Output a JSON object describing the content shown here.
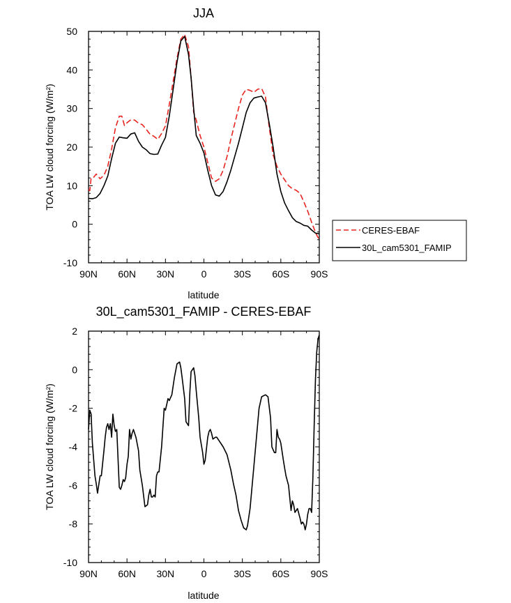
{
  "chart_data": [
    {
      "type": "line",
      "title": "JJA",
      "xlabel": "latitude",
      "ylabel": "TOA LW cloud forcing (W/m²)",
      "xlim": [
        90,
        -90
      ],
      "ylim": [
        -10,
        50
      ],
      "xticks": [
        90,
        60,
        30,
        0,
        -30,
        -60,
        -90
      ],
      "xtick_labels": [
        "90N",
        "60N",
        "30N",
        "0",
        "30S",
        "60S",
        "90S"
      ],
      "yticks": [
        -10,
        0,
        10,
        20,
        30,
        40,
        50
      ],
      "ytick_labels": [
        "-10",
        "0",
        "10",
        "20",
        "30",
        "40",
        "50"
      ],
      "legend": "right",
      "series": [
        {
          "name": "CERES-EBAF",
          "color": "#e8231f",
          "dash": "dashed",
          "x": [
            90,
            89,
            88,
            86,
            84,
            81,
            78,
            75,
            72,
            69,
            66,
            64,
            62,
            60,
            57,
            54,
            51,
            48,
            45,
            42,
            39,
            36,
            33,
            30,
            27,
            24,
            21,
            18,
            15,
            12,
            10,
            8,
            6,
            3,
            0,
            -3,
            -6,
            -9,
            -12,
            -15,
            -18,
            -21,
            -24,
            -27,
            -30,
            -33,
            -36,
            -39,
            -42,
            -45,
            -48,
            -51,
            -54,
            -57,
            -60,
            -63,
            -66,
            -69,
            -72,
            -75,
            -78,
            -81,
            -84,
            -86,
            -88,
            -90
          ],
          "y": [
            9,
            8.7,
            12,
            12.2,
            13,
            11.8,
            12.7,
            15,
            19.5,
            25,
            28,
            28,
            25.6,
            26.3,
            27.1,
            27,
            26.2,
            25.8,
            24.6,
            23.3,
            22.8,
            22,
            23.5,
            25.5,
            31,
            37,
            43,
            48,
            49.2,
            46,
            38,
            29,
            27,
            23,
            20,
            16,
            12,
            11.1,
            11.8,
            14,
            17.5,
            22,
            26,
            30,
            33.5,
            35,
            34.7,
            34.2,
            35,
            35.2,
            33,
            25,
            18,
            15,
            13,
            11.5,
            10,
            9.2,
            8.8,
            8,
            5.8,
            3.4,
            0.5,
            -1.2,
            -2.8,
            -4
          ]
        },
        {
          "name": "30L_cam5301_FAMIP",
          "color": "#000000",
          "dash": "solid",
          "x": [
            90,
            87,
            84,
            81,
            78,
            75,
            72,
            69,
            66,
            63,
            60,
            57,
            54,
            51,
            48,
            45,
            42,
            39,
            36,
            33,
            30,
            27,
            24,
            21,
            18,
            15,
            12,
            10,
            8,
            6,
            3,
            0,
            -3,
            -6,
            -9,
            -12,
            -15,
            -18,
            -21,
            -24,
            -27,
            -30,
            -33,
            -36,
            -39,
            -42,
            -45,
            -48,
            -51,
            -54,
            -57,
            -60,
            -63,
            -66,
            -69,
            -72,
            -75,
            -78,
            -81,
            -84,
            -87,
            -90
          ],
          "y": [
            6.7,
            6.6,
            6.9,
            8,
            10,
            12.5,
            17,
            21,
            22.6,
            22.4,
            22.3,
            23.4,
            23.7,
            21.5,
            20,
            19.3,
            18.3,
            18.1,
            18.2,
            20.5,
            22.5,
            28,
            35,
            42,
            47.5,
            48.7,
            44,
            38,
            30,
            23,
            21,
            18.5,
            14,
            10,
            7.6,
            7.3,
            8.5,
            11,
            14,
            17.5,
            21,
            25,
            29,
            31.5,
            32.7,
            33,
            33.2,
            31.5,
            26,
            20,
            13,
            8.5,
            5.5,
            3.5,
            1.7,
            0.7,
            0.3,
            -0.3,
            -0.5,
            -1.5,
            -2.3,
            -2.5
          ]
        }
      ]
    },
    {
      "type": "line",
      "title": "30L_cam5301_FAMIP - CERES-EBAF",
      "xlabel": "latitude",
      "ylabel": "TOA LW cloud forcing (W/m²)",
      "xlim": [
        90,
        -90
      ],
      "ylim": [
        -10,
        2
      ],
      "xticks": [
        90,
        60,
        30,
        0,
        -30,
        -60,
        -90
      ],
      "xtick_labels": [
        "90N",
        "60N",
        "30N",
        "0",
        "30S",
        "60S",
        "90S"
      ],
      "yticks": [
        -10,
        -8,
        -6,
        -4,
        -2,
        0,
        2
      ],
      "ytick_labels": [
        "-10",
        "-8",
        "-6",
        "-4",
        "-2",
        "0",
        "2"
      ],
      "series": [
        {
          "color": "#000000",
          "dash": "solid",
          "x": [
            90,
            89,
            88,
            87,
            85,
            84,
            83,
            81,
            80,
            78,
            77,
            76,
            75,
            74,
            73,
            72,
            71,
            70,
            69,
            68,
            66,
            65,
            64,
            63,
            62,
            61,
            60,
            59,
            58,
            57,
            56,
            55,
            53,
            51,
            50,
            48,
            46,
            44,
            43,
            42,
            41,
            40,
            39,
            38,
            37,
            36,
            35,
            33,
            31,
            30,
            29,
            28,
            27,
            25,
            23,
            21,
            19,
            18,
            17,
            15,
            14,
            12,
            11,
            10,
            8,
            7,
            6,
            4,
            3,
            1,
            0,
            -1,
            -3,
            -4,
            -5,
            -6,
            -7,
            -9,
            -10,
            -11,
            -12,
            -15,
            -18,
            -21,
            -23,
            -25,
            -27,
            -29,
            -31,
            -33,
            -34,
            -36,
            -39,
            -41,
            -43,
            -45,
            -48,
            -50,
            -52,
            -53,
            -55,
            -56,
            -57,
            -58,
            -59,
            -60,
            -62,
            -63,
            -64,
            -66,
            -68,
            -69,
            -70,
            -71,
            -72,
            -73,
            -75,
            -76,
            -77,
            -78,
            -79,
            -80,
            -81,
            -82,
            -83,
            -84,
            -85,
            -86,
            -87,
            -88,
            -89,
            -90
          ],
          "y": [
            -3.1,
            -2.1,
            -2.3,
            -3.8,
            -5.5,
            -5.9,
            -6.4,
            -5.5,
            -5.5,
            -4.2,
            -3.5,
            -3,
            -2.8,
            -3.1,
            -2.8,
            -3.5,
            -2.3,
            -2.9,
            -3.2,
            -3.1,
            -6.1,
            -6.2,
            -6,
            -5.7,
            -5.8,
            -5.6,
            -4.9,
            -4.5,
            -3.1,
            -3.6,
            -3.3,
            -3.1,
            -3.5,
            -4.2,
            -5.2,
            -6,
            -7.1,
            -7,
            -6.5,
            -6.2,
            -6.6,
            -6.6,
            -6.5,
            -6.6,
            -5.5,
            -5.3,
            -5.3,
            -4,
            -2,
            -2.1,
            -1.8,
            -1.5,
            -1.6,
            -1.3,
            -0.4,
            0.3,
            0.4,
            0.1,
            -0.4,
            -1.5,
            -2.7,
            -2.9,
            -1.2,
            -0.1,
            0.1,
            -0.3,
            -1.1,
            -2.5,
            -3.5,
            -4.3,
            -4.9,
            -4.7,
            -3.5,
            -3.2,
            -3.1,
            -3.3,
            -3.6,
            -3.5,
            -3.5,
            -3.6,
            -3.7,
            -4,
            -4.4,
            -5.2,
            -5.9,
            -6.5,
            -7.3,
            -7.8,
            -8.2,
            -8.3,
            -8.1,
            -7.2,
            -5,
            -3.5,
            -2,
            -1.4,
            -1.3,
            -1.4,
            -2.5,
            -4,
            -4.3,
            -4.3,
            -3.1,
            -3.5,
            -3.6,
            -3.8,
            -4.7,
            -5.1,
            -5.5,
            -6,
            -7.3,
            -6.8,
            -7,
            -7.4,
            -7.3,
            -7.2,
            -7.7,
            -8,
            -7.9,
            -8,
            -8.3,
            -8,
            -7.5,
            -7.2,
            -7.2,
            -7.4,
            -5.6,
            -3,
            -0.5,
            0.9,
            1.6,
            1.8
          ]
        }
      ]
    }
  ],
  "legend_entries": [
    "CERES-EBAF",
    "30L_cam5301_FAMIP"
  ]
}
